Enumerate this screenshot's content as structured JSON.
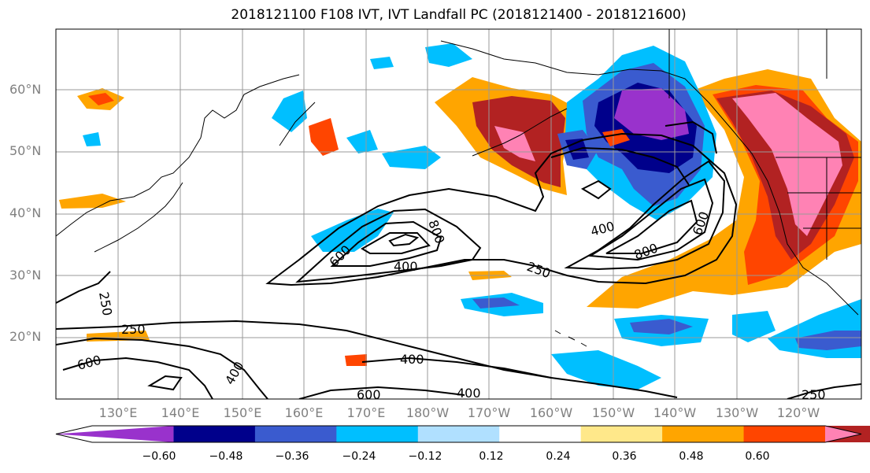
{
  "title": "2018121100 F108 IVT, IVT Landfall PC (2018121400 - 2018121600)",
  "latitude_labels": [
    "60°N",
    "50°N",
    "40°N",
    "30°N",
    "20°N"
  ],
  "longitude_labels": [
    "130°E",
    "140°E",
    "150°E",
    "160°E",
    "170°E",
    "180°W",
    "170°W",
    "160°W",
    "150°W",
    "140°W",
    "130°W",
    "120°W"
  ],
  "colorbar": {
    "colors": [
      "#9932cc",
      "#00008b",
      "#3a5bcf",
      "#00bfff",
      "#b0e0ff",
      "#ffffff",
      "#ffe88a",
      "#ffa500",
      "#ff4500",
      "#b22222",
      "#ff82b4"
    ],
    "tick_labels": [
      "−0.60",
      "−0.48",
      "−0.36",
      "−0.24",
      "−0.12",
      "0.12",
      "0.24",
      "0.36",
      "0.48",
      "0.60"
    ]
  },
  "contour_labels": [
    "250",
    "250",
    "250",
    "250",
    "400",
    "400",
    "400",
    "400",
    "400",
    "600",
    "600",
    "600",
    "600",
    "800",
    "800"
  ]
}
